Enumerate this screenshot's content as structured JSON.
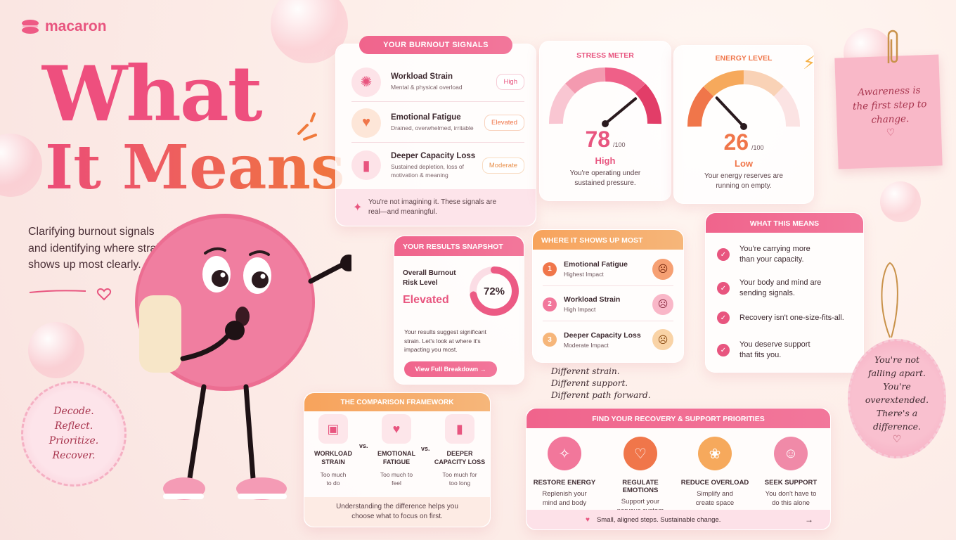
{
  "brand": {
    "name": "macaron"
  },
  "hero": {
    "line1": "What",
    "line2": "It Means",
    "subtitle": "Clarifying burnout signals and identifying where strain shows up most clearly."
  },
  "stamp": {
    "text": "Decode. Reflect. Prioritize. Recover."
  },
  "signals": {
    "header": "YOUR BURNOUT SIGNALS",
    "items": [
      {
        "title": "Workload Strain",
        "desc": "Mental & physical overload",
        "badge": "High",
        "icon": "brain-icon"
      },
      {
        "title": "Emotional Fatigue",
        "desc": "Drained, overwhelmed, irritable",
        "badge": "Elevated",
        "icon": "heart-icon"
      },
      {
        "title": "Deeper Capacity Loss",
        "desc": "Sustained depletion, loss of motivation & meaning",
        "badge": "Moderate",
        "icon": "battery-icon"
      }
    ],
    "note": "You're not imagining it. These signals are real—and meaningful."
  },
  "stress": {
    "title": "STRESS METER",
    "value": "78",
    "max": "/100",
    "level": "High",
    "desc": "You're operating under sustained pressure.",
    "fraction": 0.78
  },
  "energy": {
    "title": "ENERGY LEVEL",
    "value": "26",
    "max": "/100",
    "level": "Low",
    "desc": "Your energy reserves are running on empty.",
    "fraction": 0.26
  },
  "sticky": {
    "text": "Awareness is the first step to change."
  },
  "snapshot": {
    "header": "YOUR RESULTS SNAPSHOT",
    "label": "Overall Burnout Risk Level",
    "level": "Elevated",
    "percent": "72%",
    "fraction": 0.72,
    "desc": "Your results suggest significant strain. Let's look at where it's impacting you most.",
    "button": "View Full Breakdown →"
  },
  "where": {
    "header": "WHERE IT SHOWS UP MOST",
    "items": [
      {
        "num": "1",
        "title": "Emotional Fatigue",
        "impact": "Highest Impact"
      },
      {
        "num": "2",
        "title": "Workload Strain",
        "impact": "High Impact"
      },
      {
        "num": "3",
        "title": "Deeper Capacity Loss",
        "impact": "Moderate Impact"
      }
    ],
    "handnote": "Different strain. Different support. Different path forward."
  },
  "means": {
    "header": "WHAT THIS MEANS",
    "items": [
      "You're carrying more than your capacity.",
      "Your body and mind are sending signals.",
      "Recovery isn't one-size-fits-all.",
      "You deserve support that fits you."
    ]
  },
  "tag": {
    "text": "You're not falling apart. You're overextended. There's a difference."
  },
  "comparison": {
    "header": "THE COMPARISON FRAMEWORK",
    "items": [
      {
        "title": "WORKLOAD STRAIN",
        "desc": "Too much to do"
      },
      {
        "title": "EMOTIONAL FATIGUE",
        "desc": "Too much to feel"
      },
      {
        "title": "DEEPER CAPACITY LOSS",
        "desc": "Too much for too long"
      }
    ],
    "vs": "vs.",
    "footer": "Understanding the difference helps you choose what to focus on first."
  },
  "priorities": {
    "header": "FIND YOUR RECOVERY & SUPPORT PRIORITIES",
    "items": [
      {
        "title": "RESTORE ENERGY",
        "desc": "Replenish your mind and body",
        "color": "#f2779b"
      },
      {
        "title": "REGULATE EMOTIONS",
        "desc": "Support your nervous system",
        "color": "#f0764a"
      },
      {
        "title": "REDUCE OVERLOAD",
        "desc": "Simplify and create space",
        "color": "#f6a95c"
      },
      {
        "title": "SEEK SUPPORT",
        "desc": "You don't have to do this alone",
        "color": "#f08aa8"
      }
    ],
    "footer": "Small, aligned steps. Sustainable change."
  }
}
